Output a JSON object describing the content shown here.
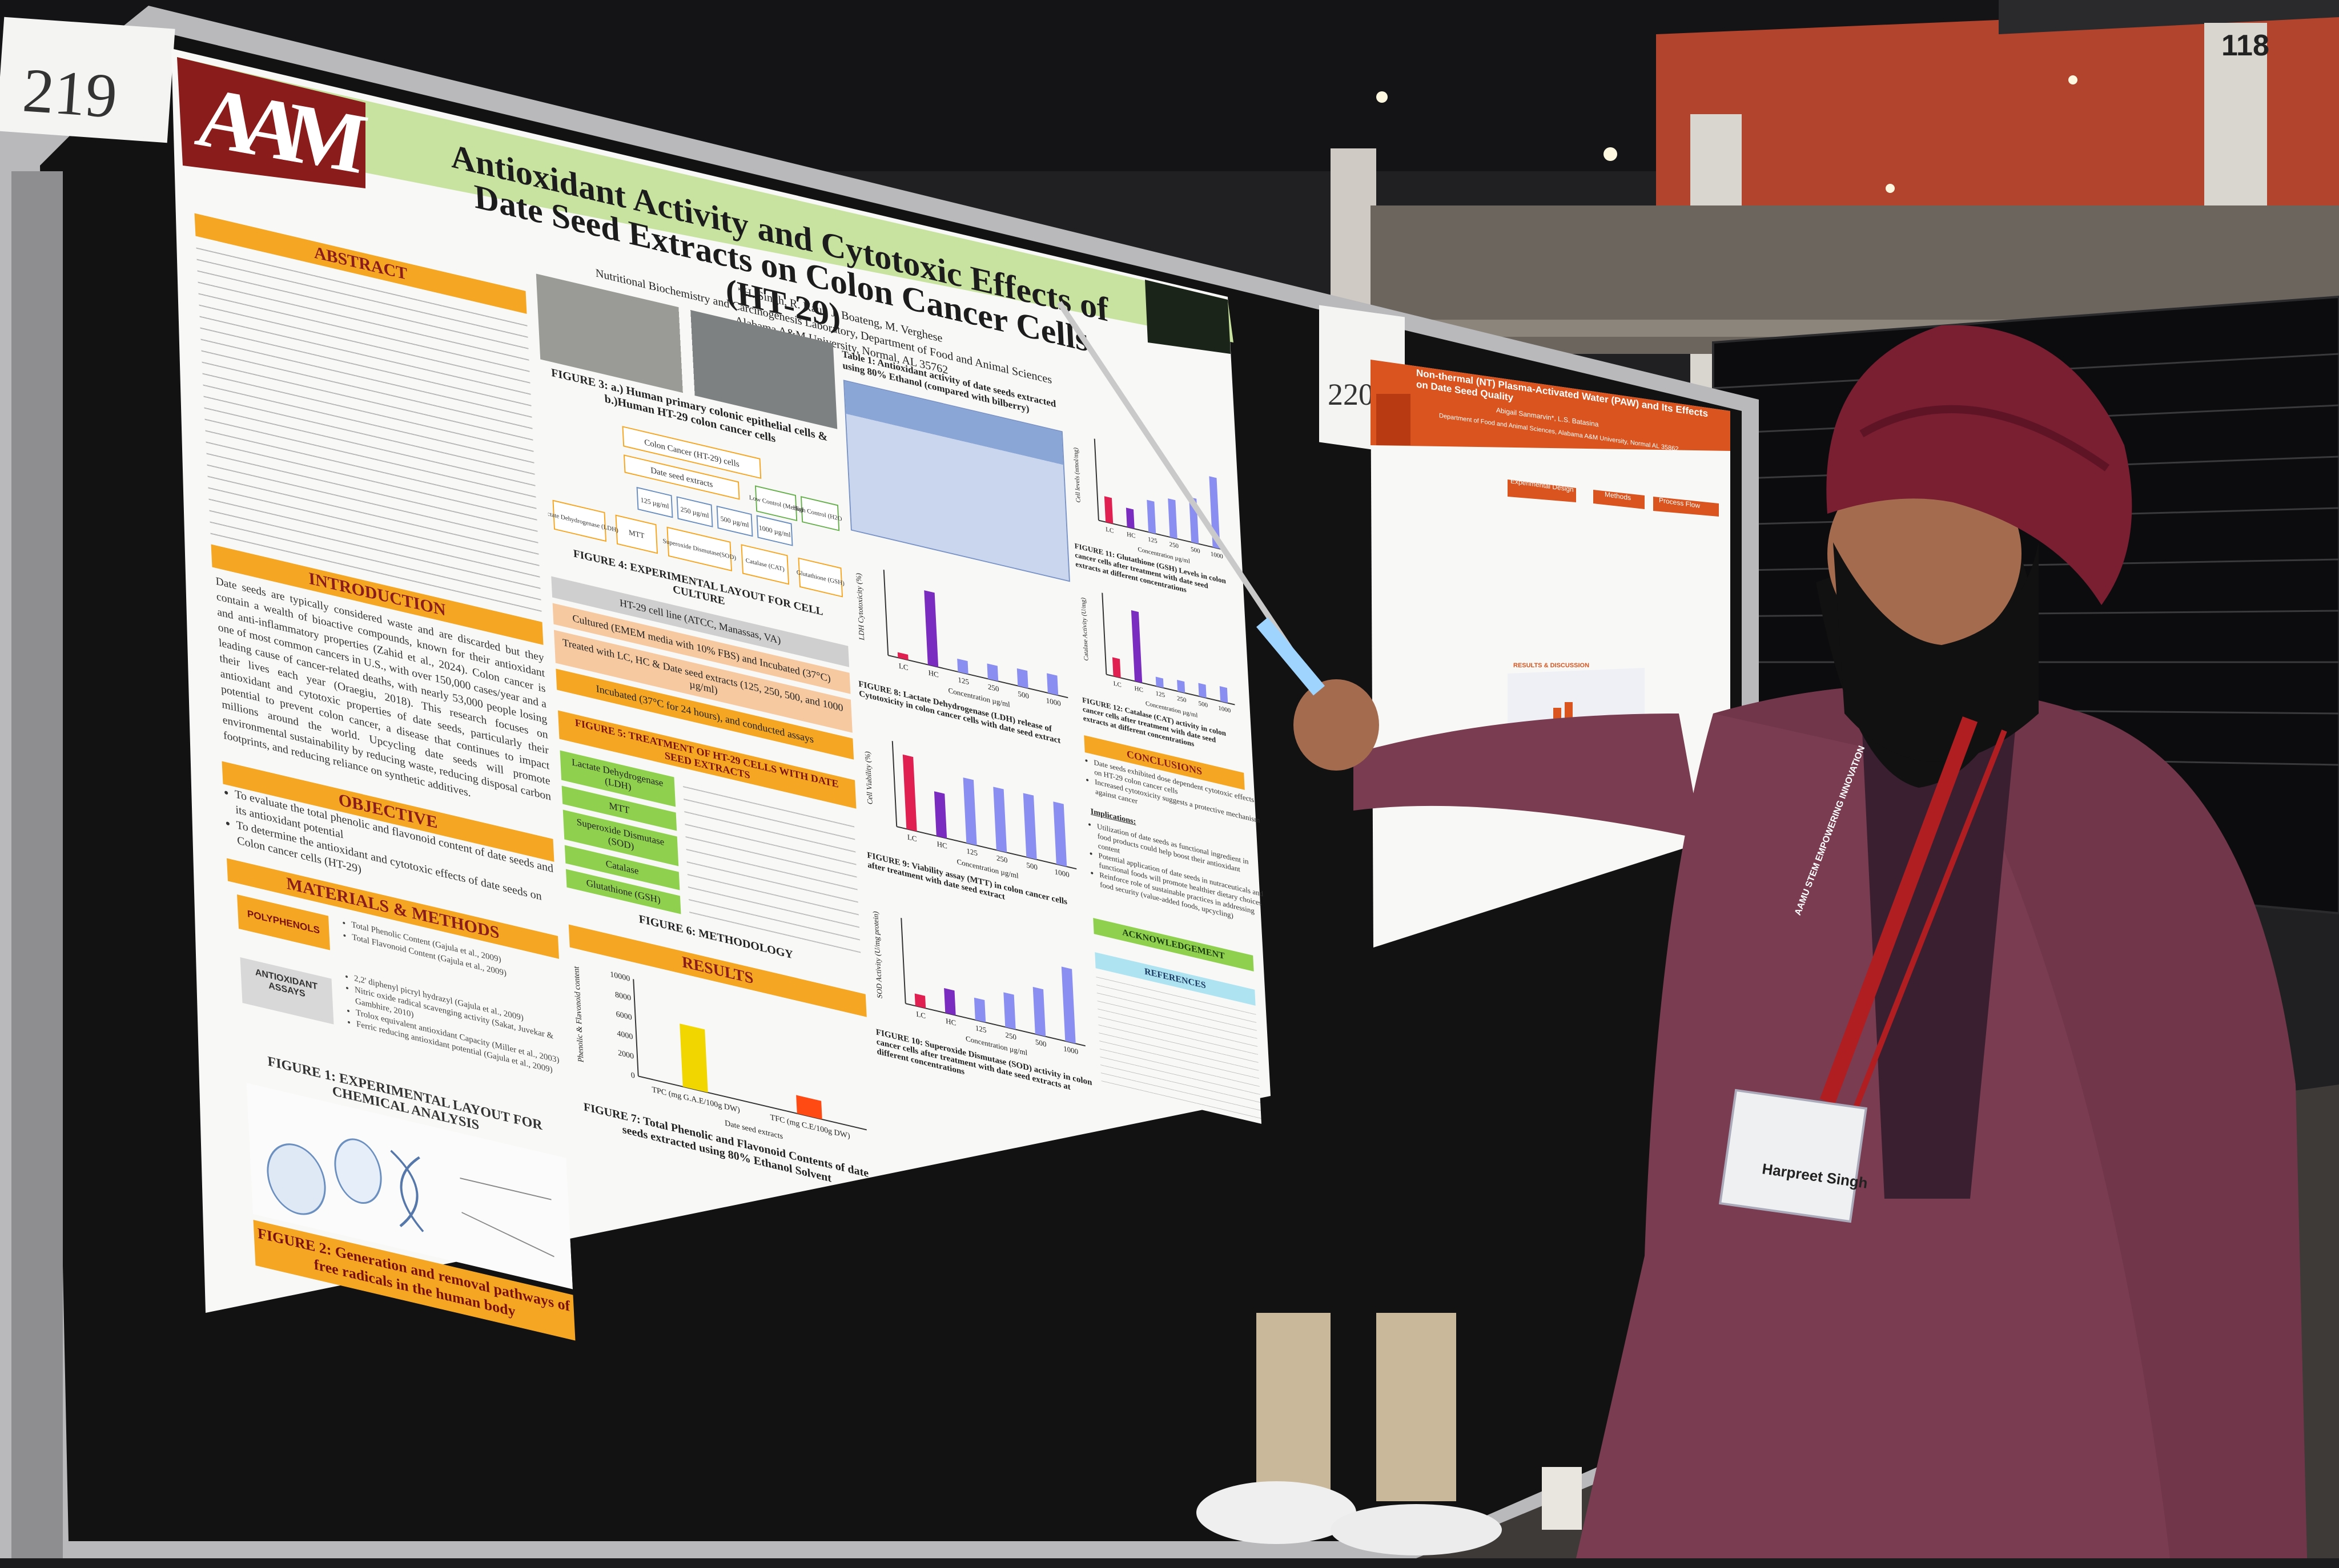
{
  "board_labels": {
    "left": "219",
    "right": "220"
  },
  "arena_section_label": "118",
  "poster": {
    "title": "Antioxidant Activity and Cytotoxic Effects of Date Seed Extracts on Colon Cancer Cells (HT-29)",
    "authors": "*H. Singh, R. Kaur, J. Boateng, M. Verghese",
    "lab": "Nutritional Biochemistry and Carcinogenesis Laboratory, Department of Food and Animal Sciences",
    "university": "Alabama A&M University, Normal, AL 35762",
    "logo_letters": "AAM",
    "sections": {
      "abstract": "ABSTRACT",
      "introduction": "INTRODUCTION",
      "objective": "OBJECTIVE",
      "materials_methods": "MATERIALS & METHODS",
      "results": "RESULTS",
      "conclusions": "CONCLUSIONS",
      "acknowledgement": "ACKNOWLEDGEMENT",
      "references": "REFERENCES"
    },
    "introduction_text": "Date seeds are typically considered waste and are discarded but they contain a wealth of bioactive compounds, known for their antioxidant and anti-inflammatory properties (Zahid et al., 2024). Colon cancer is one of most common cancers in U.S., with over 150,000 cases/year and a leading cause of cancer-related deaths, with nearly 53,000 people losing their lives each year (Oraegiu, 2018). This research focuses on antioxidant and cytotoxic properties of date seeds, particularly their potential to prevent colon cancer, a disease that continues to impact millions around the world. Upcycling date seeds will promote environmental sustainability by reducing waste, reducing disposal carbon footprints, and reducing reliance on synthetic additives.",
    "objectives": [
      "To evaluate the total phenolic and flavonoid content of date seeds and its antioxidant potential",
      "To determine the antioxidant and cytotoxic effects of date seeds on Colon cancer cells (HT-29)"
    ],
    "methods": {
      "polyphenols_label": "POLYPHENOLS",
      "polyphenols_items": [
        "Total Phenolic Content (Gajula et al., 2009)",
        "Total Flavonoid Content (Gajula et al., 2009)"
      ],
      "antioxidant_label": "ANTIOXIDANT ASSAYS",
      "antioxidant_items": [
        "2,2' diphenyl picryl hydrazyl (Gajula et al., 2009)",
        "Nitric oxide radical scavenging activity (Sakat, Juvekar & Gambhire, 2010)",
        "Trolox equivalent antioxidant Capacity (Miller et al., 2003)",
        "Ferric reducing antioxidant potential (Gajula et al., 2009)"
      ]
    },
    "figure_captions": {
      "fig1": "FIGURE 1: EXPERIMENTAL LAYOUT FOR CHEMICAL ANALYSIS",
      "fig2": "FIGURE 2: Generation and removal pathways of free radicals in the human body",
      "fig3": "FIGURE 3: a.) Human primary colonic epithelial cells & b.)Human HT-29 colon cancer cells",
      "fig4": "FIGURE 4: EXPERIMENTAL LAYOUT FOR CELL CULTURE",
      "fig5": "FIGURE 5: TREATMENT OF HT-29 CELLS WITH DATE SEED EXTRACTS",
      "fig6": "FIGURE 6: METHODOLOGY",
      "fig7": "FIGURE 7: Total Phenolic and Flavonoid Contents of date seeds extracted using 80% Ethanol Solvent",
      "fig8": "FIGURE 8: Lactate Dehydrogenase (LDH) release of Cytotoxicity in colon cancer cells with date seed extract",
      "fig9": "FIGURE 9: Viability assay (MTT) in colon cancer cells after treatment with date seed extract",
      "fig10": "FIGURE 10: Superoxide Dismutase (SOD) activity in colon cancer cells after treatment with date seed extracts at different concentrations",
      "fig11": "FIGURE 11: Glutathione (GSH) Levels in colon cancer cells after treatment with date seed extracts at different concentrations",
      "fig12": "FIGURE 12: Catalase (CAT) activity in colon cancer cells after treatment with date seed extracts at different concentrations"
    },
    "table1_title": "Table 1: Antioxidant activity of date seeds extracted using 80% Ethanol (compared with bilberry)",
    "flow_steps": [
      "HT-29 cell line (ATCC, Manassas, VA)",
      "Cultured (EMEM media with 10% FBS) and Incubated (37°C)",
      "Treated with LC, HC & Date seed extracts (125, 250, 500, and 1000 µg/ml)",
      "Incubated (37°C for 24 hours), and conducted assays"
    ],
    "assays": [
      "Lactate Dehydrogenase (LDH)",
      "MTT",
      "Superoxide Dismutase (SOD)",
      "Catalase",
      "Glutathione (GSH)"
    ],
    "fig4_nodes": {
      "top": "Colon Cancer (HT-29) cells",
      "mid": "Date seed extracts",
      "low_control": "Low Control (Media)",
      "high_control": "High Control (H2O2)"
    },
    "fig4_conc": [
      "125 µg/ml",
      "250 µg/ml",
      "500 µg/ml",
      "1000 µg/ml"
    ],
    "fig4_assays": [
      "Lactate Dehydrogenase (LDH)",
      "MTT",
      "Superoxide Dismutase(SOD)",
      "Catalase (CAT)",
      "Glutathione (GSH)"
    ],
    "conclusions": [
      "Date seeds exhibited dose dependent cytotoxic effects on HT-29 colon cancer cells",
      "Increased cytotoxicity suggests a protective mechanism against cancer"
    ],
    "implications_label": "Implications:",
    "implications": [
      "Utilization of date seeds as functional ingredient in food products could help boost their antioxidant content",
      "Potential application of date seeds in nutraceuticals and functional foods will promote healthier dietary choices",
      "Reinforce role of sustainable practices in addressing food security (value-added foods, upcycling)"
    ]
  },
  "chart_data": [
    {
      "type": "bar",
      "title": "FIGURE 7: Total Phenolic and Flavonoid Contents of date seeds extracted using 80% Ethanol Solvent",
      "categories": [
        "TPC (mg G.A.E/100g DW)",
        "TFC (mg C.E/100g DW)"
      ],
      "values": [
        6500,
        1900
      ],
      "colors": [
        "#f1d600",
        "#ff4a14"
      ],
      "ylabel": "Phenolic & Flavonoid content",
      "xlabel": "Date seed extracts",
      "ylim": [
        0,
        10000
      ],
      "yticks": [
        "10000",
        "8000",
        "6000",
        "4000",
        "2000",
        "0"
      ]
    },
    {
      "type": "bar",
      "title": "FIGURE 8",
      "categories": [
        "LC",
        "HC",
        "125",
        "250",
        "500",
        "1000"
      ],
      "values": [
        5,
        68,
        12,
        14,
        16,
        18
      ],
      "ylabel": "LDH Cytotoxicity (%)",
      "xlabel": "Concentration µg/ml"
    },
    {
      "type": "bar",
      "title": "FIGURE 9",
      "categories": [
        "LC",
        "HC",
        "125",
        "250",
        "500",
        "1000"
      ],
      "values": [
        100,
        60,
        88,
        85,
        86,
        84
      ],
      "ylabel": "Cell Viability (%)",
      "xlabel": "Concentration µg/ml"
    },
    {
      "type": "bar",
      "title": "FIGURE 10",
      "categories": [
        "LC",
        "HC",
        "125",
        "250",
        "500",
        "1000"
      ],
      "values": [
        5,
        10,
        9,
        14,
        19,
        30
      ],
      "ylabel": "SOD Activity (U/mg protein)",
      "xlabel": "Concentration µg/ml"
    },
    {
      "type": "bar",
      "title": "FIGURE 11",
      "categories": [
        "LC",
        "HC",
        "125",
        "250",
        "500",
        "1000"
      ],
      "values": [
        20,
        15,
        25,
        30,
        35,
        55
      ],
      "ylabel": "Cell levels (nmol/mg)",
      "xlabel": "Concentration µg/ml"
    },
    {
      "type": "bar",
      "title": "FIGURE 12",
      "categories": [
        "LC",
        "HC",
        "125",
        "250",
        "500",
        "1000"
      ],
      "values": [
        20,
        75,
        10,
        12,
        14,
        16
      ],
      "ylabel": "Catalase Activity (U/mg)",
      "xlabel": "Concentration µg/ml"
    }
  ],
  "poster2": {
    "title": "Non-thermal (NT) Plasma-Activated Water (PAW) and Its Effects on Date Seed Quality",
    "authors": "Abigail Sanmarvin*, L.S. Batasina",
    "dept": "Department of Food and Animal Sciences, Alabama A&M University, Normal AL 35862",
    "headers": [
      "Experimental Design",
      "Methods",
      "Process Flow",
      "RESULTS & DISCUSSION"
    ]
  },
  "badge": {
    "name": "Harpreet Singh"
  },
  "lanyard_text": "AAMU STEM EMPOWERING INNOVATION"
}
